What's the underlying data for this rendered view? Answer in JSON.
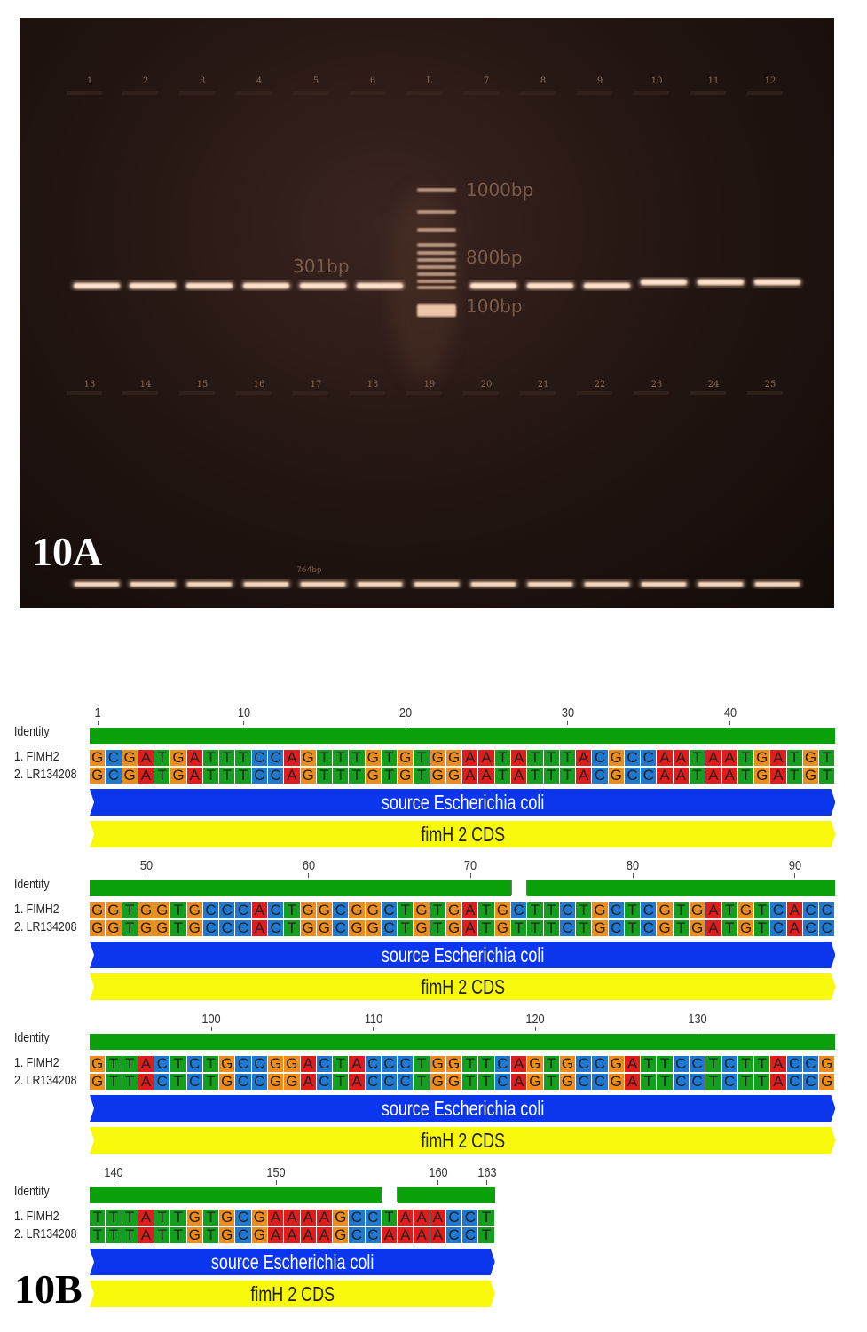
{
  "panelA": {
    "label": "10A",
    "lane_numbers_top": [
      "1",
      "2",
      "3",
      "4",
      "5",
      "6",
      "L",
      "7",
      "8",
      "9",
      "10",
      "11",
      "12"
    ],
    "lane_numbers_bottom": [
      "13",
      "14",
      "15",
      "16",
      "17",
      "18",
      "19",
      "20",
      "21",
      "22",
      "23",
      "24",
      "25"
    ],
    "ladder_labels": [
      "1000bp",
      "800bp",
      "100bp"
    ],
    "band_label": "301bp",
    "band_label_bottom": "764bp",
    "colors": {
      "gel": "#1b100c",
      "band": "#f4c8a8"
    }
  },
  "panelB": {
    "label": "10B",
    "identity_label": "Identity",
    "seq1_name": "1. FIMH2",
    "seq2_name": "2. LR134208",
    "source_label": "source Escherichia coli",
    "cds_label": "fimH 2 CDS",
    "colors": {
      "A": "#e01c1c",
      "C": "#1f78d1",
      "G": "#f08c1a",
      "T": "#14a01e",
      "identity": "#0aa00a",
      "source": "#0b36ee",
      "cds": "#f8f80a"
    },
    "blocks": [
      {
        "ruler": [
          "1",
          "10",
          "20",
          "30",
          "40"
        ],
        "seq1": "GCGATGATTTCCAGTTTGTGTGGAATATTTACGCCAATAATGATGT",
        "seq2": "GCGATGATTTCCAGTTTGTGTGGAATATTTACGCCAATAATGATGT"
      },
      {
        "ruler": [
          "50",
          "60",
          "70",
          "80",
          "90"
        ],
        "seq1": "GGTGGTGCCCACTGGCGGCTGTGATGCTTCTGCTCGTGATGTCACC",
        "seq2": "GGTGGTGCCCACTGGCGGCTGTGATGTTTCTGCTCGTGATGTCACC"
      },
      {
        "ruler": [
          "100",
          "110",
          "120",
          "130"
        ],
        "seq1": "GTTACTCTGCCGGACTACCCTGGTTCAGTGCCGATTCCTCTTACCG",
        "seq2": "GTTACTCTGCCGGACTACCCTGGTTCAGTGCCGATTCCTCTTACCG"
      },
      {
        "ruler": [
          "140",
          "150",
          "160",
          "163"
        ],
        "seq1": "TTTATTGTGCGAAAAGCCTAAACCT",
        "seq2": "TTTATTGTGCGAAAAGCCAAAACCT"
      }
    ]
  }
}
